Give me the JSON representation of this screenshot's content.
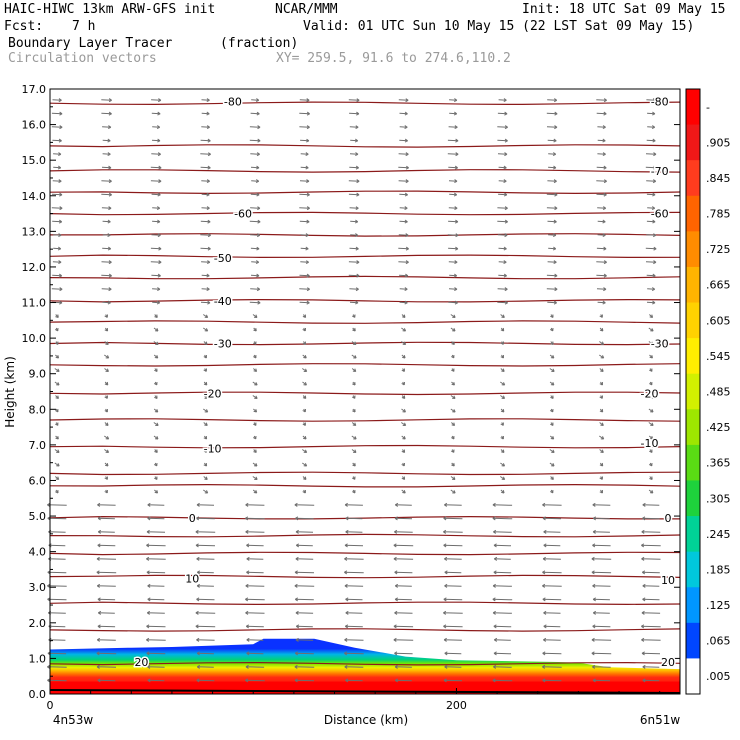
{
  "header": {
    "model": "HAIC-HIWC 13km ARW-GFS init",
    "org": "NCAR/MMM",
    "init": "Init: 18 UTC Sat 09 May 15",
    "fcst_label": "Fcst:",
    "fcst_value": "7 h",
    "valid": "Valid: 01 UTC Sun 10 May 15 (22 LST Sat 09 May 15)",
    "field1": "Boundary Layer Tracer",
    "field1_units": "(fraction)",
    "field2": "Circulation vectors",
    "xy": "XY= 259.5, 91.6 to 274.6,110.2"
  },
  "chart_data": {
    "type": "heatmap",
    "xlabel": "Distance (km)",
    "ylabel": "Height (km)",
    "xlim": [
      0,
      310
    ],
    "ylim": [
      0.0,
      17.0
    ],
    "x_ticks": [
      0,
      200
    ],
    "x_tick_labels": [
      "0",
      "200"
    ],
    "x_end_labels": [
      "4n53w",
      "6n51w"
    ],
    "y_ticks": [
      0.0,
      1.0,
      2.0,
      3.0,
      4.0,
      5.0,
      6.0,
      7.0,
      8.0,
      9.0,
      10.0,
      11.0,
      12.0,
      13.0,
      14.0,
      15.0,
      16.0,
      17.0
    ],
    "y_tick_labels": [
      "0.0",
      "1.0",
      "2.0",
      "3.0",
      "4.0",
      "5.0",
      "6.0",
      "7.0",
      "8.0",
      "9.0",
      "10.0",
      "11.0",
      "12.0",
      "13.0",
      "14.0",
      "15.0",
      "16.0",
      "17.0"
    ],
    "colorbar": {
      "labels": [
        "-",
        ".905",
        ".845",
        ".785",
        ".725",
        ".665",
        ".605",
        ".545",
        ".485",
        ".425",
        ".365",
        ".305",
        ".245",
        ".185",
        ".125",
        ".065",
        ".005"
      ],
      "colors": [
        "#ff0000",
        "#f01818",
        "#ff3c1e",
        "#ff6400",
        "#ff8c00",
        "#ffb400",
        "#ffd200",
        "#ffee00",
        "#d2f000",
        "#9ee600",
        "#5adc14",
        "#1ed23c",
        "#00d296",
        "#00c8dc",
        "#0096ff",
        "#0046ff",
        "#ffffff"
      ]
    },
    "tracer_top_km": [
      [
        0,
        1.25
      ],
      [
        40,
        1.3
      ],
      [
        60,
        1.32
      ],
      [
        100,
        1.4
      ],
      [
        105,
        1.55
      ],
      [
        130,
        1.55
      ],
      [
        150,
        1.3
      ],
      [
        175,
        1.05
      ],
      [
        200,
        0.95
      ],
      [
        250,
        0.9
      ],
      [
        260,
        0.88
      ],
      [
        275,
        0.75
      ],
      [
        310,
        0.7
      ]
    ],
    "temperature_labels": [
      {
        "text": "-80",
        "x": 90,
        "z": 16.65
      },
      {
        "text": "-80",
        "x": 300,
        "z": 16.65
      },
      {
        "text": "-70",
        "x": 300,
        "z": 14.7
      },
      {
        "text": "-60",
        "x": 95,
        "z": 13.5
      },
      {
        "text": "-60",
        "x": 300,
        "z": 13.5
      },
      {
        "text": "-50",
        "x": 85,
        "z": 12.25
      },
      {
        "text": "-40",
        "x": 85,
        "z": 11.05
      },
      {
        "text": "-30",
        "x": 85,
        "z": 9.85
      },
      {
        "text": "-30",
        "x": 300,
        "z": 9.85
      },
      {
        "text": "-20",
        "x": 80,
        "z": 8.45
      },
      {
        "text": "-20",
        "x": 295,
        "z": 8.45
      },
      {
        "text": "-10",
        "x": 80,
        "z": 6.9
      },
      {
        "text": "-10",
        "x": 295,
        "z": 7.05
      },
      {
        "text": "0",
        "x": 70,
        "z": 4.95
      },
      {
        "text": "0",
        "x": 310,
        "z": 4.95
      },
      {
        "text": "10",
        "x": 70,
        "z": 3.25
      },
      {
        "text": "10",
        "x": 305,
        "z": 3.2
      },
      {
        "text": "20",
        "x": 45,
        "z": 0.9
      },
      {
        "text": "20",
        "x": 305,
        "z": 0.9
      }
    ],
    "isotherm_levels_km": [
      16.6,
      15.4,
      14.7,
      14.1,
      13.5,
      12.9,
      12.3,
      11.7,
      11.05,
      10.45,
      9.85,
      9.25,
      8.45,
      7.7,
      6.95,
      6.2,
      5.85,
      4.95,
      4.45,
      3.95,
      3.3,
      2.55,
      1.8,
      0.85
    ]
  }
}
